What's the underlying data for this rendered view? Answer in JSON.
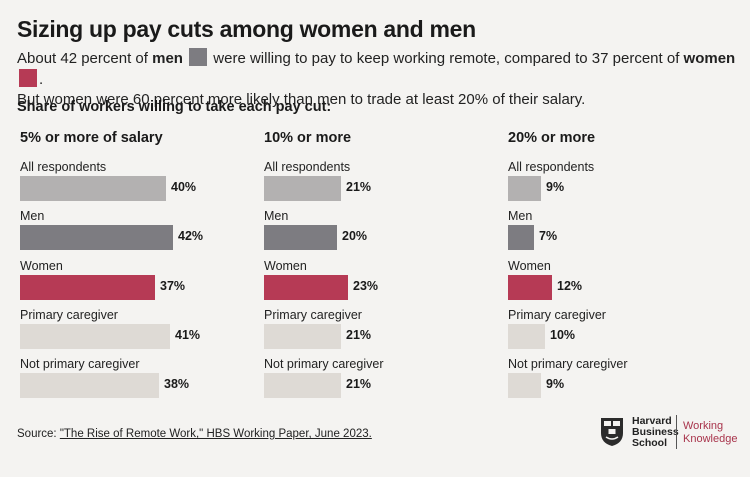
{
  "title": "Sizing up pay cuts among women and men",
  "subtitle": {
    "part1": "About 42 percent of ",
    "men_word": "men",
    "part2": " were willing to pay to keep working remote, compared to 37 percent of ",
    "women_word": "women",
    "part3": ".",
    "line2": "But women were 60 percent more likely than men to trade at least 20% of their salary."
  },
  "section_title": "Share of workers willing to take each pay cut:",
  "colors": {
    "all": "#b3b1b1",
    "men": "#7d7c81",
    "women": "#b63a55",
    "caregiver": "#dedad5",
    "background": "#f4f3f1"
  },
  "chart_data": [
    {
      "type": "bar",
      "title": "5% or more of salary",
      "categories": [
        "All respondents",
        "Men",
        "Women",
        "Primary caregiver",
        "Not primary caregiver"
      ],
      "values": [
        40,
        42,
        37,
        41,
        38
      ],
      "labels": [
        "40%",
        "42%",
        "37%",
        "41%",
        "38%"
      ],
      "xlim": [
        0,
        45
      ]
    },
    {
      "type": "bar",
      "title": "10% or more",
      "categories": [
        "All respondents",
        "Men",
        "Women",
        "Primary caregiver",
        "Not primary caregiver"
      ],
      "values": [
        21,
        20,
        23,
        21,
        21
      ],
      "labels": [
        "21%",
        "20%",
        "23%",
        "21%",
        "21%"
      ],
      "xlim": [
        0,
        45
      ]
    },
    {
      "type": "bar",
      "title": "20% or more",
      "categories": [
        "All respondents",
        "Men",
        "Women",
        "Primary caregiver",
        "Not primary caregiver"
      ],
      "values": [
        9,
        7,
        12,
        10,
        9
      ],
      "labels": [
        "9%",
        "7%",
        "12%",
        "10%",
        "9%"
      ],
      "xlim": [
        0,
        45
      ]
    }
  ],
  "source": {
    "prefix": "Source: ",
    "link": "\"The Rise of Remote Work,\" HBS Working Paper, June 2023."
  },
  "logo": {
    "hbs_line1": "Harvard",
    "hbs_line2": "Business",
    "hbs_line3": "School",
    "wk_line1": "Working",
    "wk_line2": "Knowledge"
  }
}
